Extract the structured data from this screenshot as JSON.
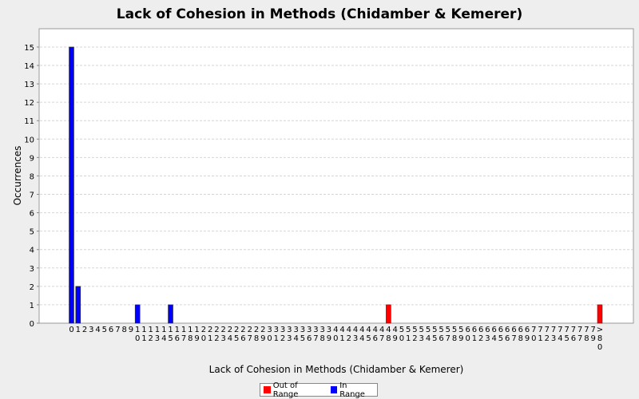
{
  "chart_data": {
    "type": "bar",
    "title": "Lack of Cohesion in Methods (Chidamber & Kemerer)",
    "xlabel": "Lack of Cohesion in Methods (Chidamber & Kemerer)",
    "ylabel": "Occurrences",
    "ylim": [
      0,
      16
    ],
    "yticks": [
      0,
      1,
      2,
      3,
      4,
      5,
      6,
      7,
      8,
      9,
      10,
      11,
      12,
      13,
      14,
      15
    ],
    "grid": true,
    "legend_position": "bottom",
    "categories": [
      "0",
      "1",
      "2",
      "3",
      "4",
      "5",
      "6",
      "7",
      "8",
      "9",
      "10",
      "11",
      "12",
      "13",
      "14",
      "15",
      "16",
      "17",
      "18",
      "19",
      "20",
      "21",
      "22",
      "23",
      "24",
      "25",
      "26",
      "27",
      "28",
      "29",
      "30",
      "31",
      "32",
      "33",
      "34",
      "35",
      "36",
      "37",
      "38",
      "39",
      "40",
      "41",
      "42",
      "43",
      "44",
      "45",
      "46",
      "47",
      "48",
      "49",
      "50",
      "51",
      "52",
      "53",
      "54",
      "55",
      "56",
      "57",
      "58",
      "59",
      "60",
      "61",
      "62",
      "63",
      "64",
      "65",
      "66",
      "67",
      "68",
      "69",
      "70",
      "71",
      "72",
      "73",
      "74",
      "75",
      "76",
      "77",
      "78",
      "79",
      ">80"
    ],
    "series": [
      {
        "name": "Out of Range",
        "color": "#ff0000",
        "values": [
          0,
          0,
          0,
          0,
          0,
          0,
          0,
          0,
          0,
          0,
          0,
          0,
          0,
          0,
          0,
          0,
          0,
          0,
          0,
          0,
          0,
          0,
          0,
          0,
          0,
          0,
          0,
          0,
          0,
          0,
          0,
          0,
          0,
          0,
          0,
          0,
          0,
          0,
          0,
          0,
          0,
          0,
          0,
          0,
          0,
          0,
          0,
          0,
          1,
          0,
          0,
          0,
          0,
          0,
          0,
          0,
          0,
          0,
          0,
          0,
          0,
          0,
          0,
          0,
          0,
          0,
          0,
          0,
          0,
          0,
          0,
          0,
          0,
          0,
          0,
          0,
          0,
          0,
          0,
          0,
          1
        ]
      },
      {
        "name": "In Range",
        "color": "#0000ff",
        "values": [
          15,
          2,
          0,
          0,
          0,
          0,
          0,
          0,
          0,
          0,
          1,
          0,
          0,
          0,
          0,
          1,
          0,
          0,
          0,
          0,
          0,
          0,
          0,
          0,
          0,
          0,
          0,
          0,
          0,
          0,
          0,
          0,
          0,
          0,
          0,
          0,
          0,
          0,
          0,
          0,
          0,
          0,
          0,
          0,
          0,
          0,
          0,
          0,
          0,
          0,
          0,
          0,
          0,
          0,
          0,
          0,
          0,
          0,
          0,
          0,
          0,
          0,
          0,
          0,
          0,
          0,
          0,
          0,
          0,
          0,
          0,
          0,
          0,
          0,
          0,
          0,
          0,
          0,
          0,
          0,
          0
        ]
      }
    ]
  }
}
